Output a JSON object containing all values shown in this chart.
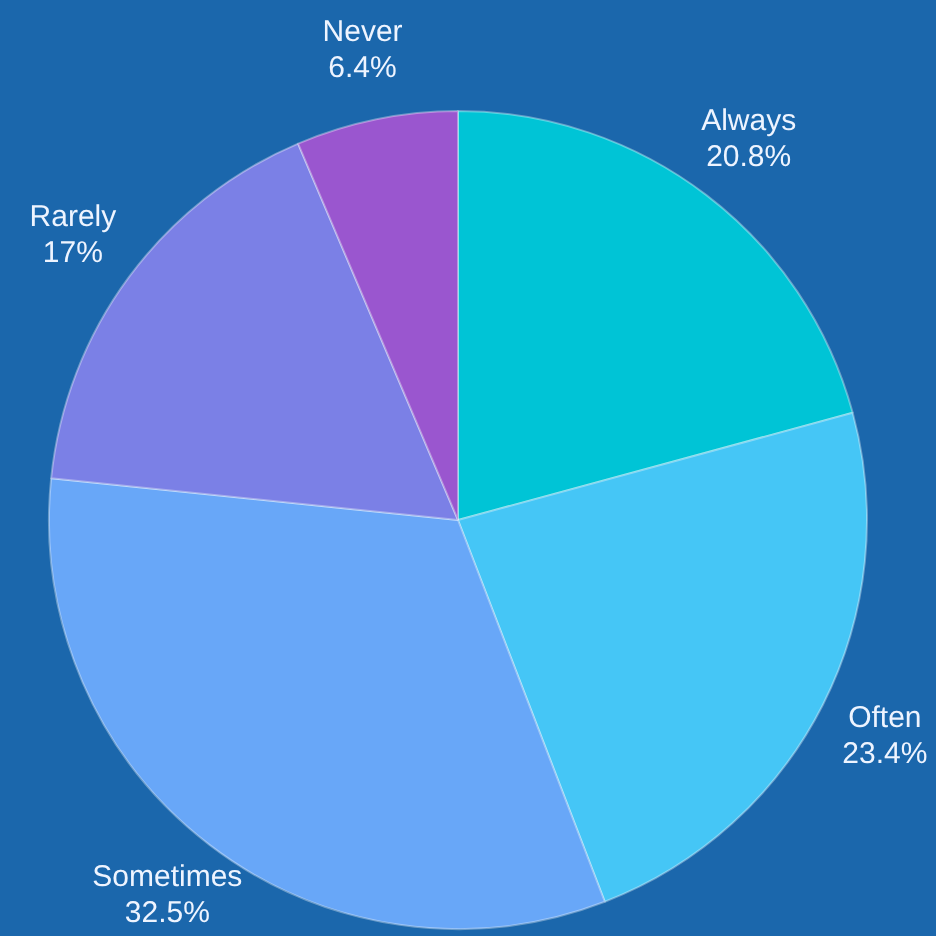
{
  "chart_data": {
    "type": "pie",
    "categories": [
      "Always",
      "Often",
      "Sometimes",
      "Rarely",
      "Never"
    ],
    "values": [
      20.8,
      23.4,
      32.5,
      17,
      6.4
    ],
    "value_labels": [
      "20.8%",
      "23.4%",
      "32.5%",
      "17%",
      "6.4%"
    ],
    "colors": [
      "#00c4d6",
      "#45c6f6",
      "#68a7f8",
      "#7b80e6",
      "#9a56cf"
    ],
    "legend": false
  }
}
